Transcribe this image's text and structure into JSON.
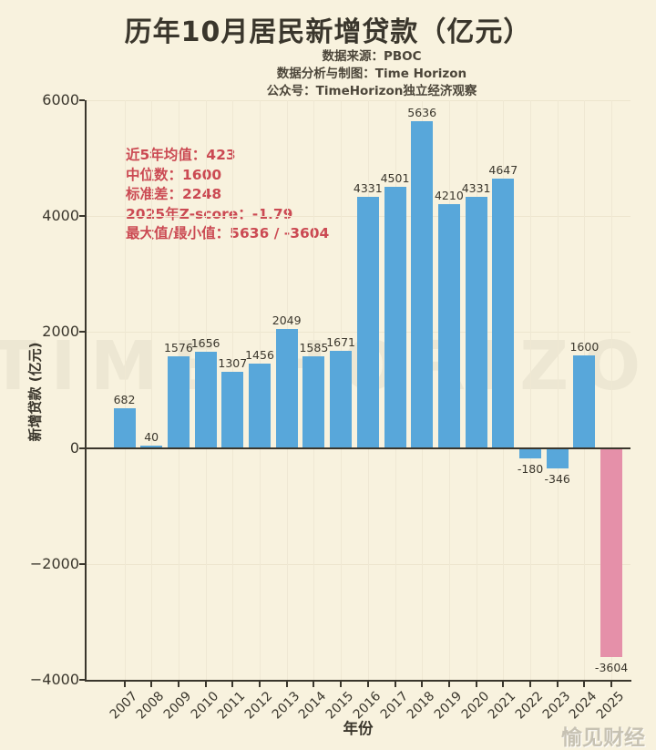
{
  "title": "历年10月居民新增贷款（亿元）",
  "subtitle": {
    "lines": [
      "数据来源：PBOC",
      "数据分析与制图：Time Horizon",
      "公众号：TimeHorizon独立经济观察"
    ]
  },
  "stats_box": {
    "lines": [
      "近5年均值：423",
      "中位数：1600",
      "标准差：2248",
      "2025年Z-score：-1.79",
      "最大值/最小值：5636 / -3604"
    ]
  },
  "watermarks": {
    "plot": "TIME HORIZON",
    "corner": "愉见财经"
  },
  "colors": {
    "background": "#F8F2DE",
    "bar_primary": "#58A7DA",
    "bar_highlight": "#E590A9",
    "axis": "#3A362C",
    "stats_text": "#CB4A53",
    "grid": "#EDE5CE"
  },
  "chart_data": {
    "type": "bar",
    "title": "历年10月居民新增贷款（亿元）",
    "categories": [
      "2007",
      "2008",
      "2009",
      "2010",
      "2011",
      "2012",
      "2013",
      "2014",
      "2015",
      "2016",
      "2017",
      "2018",
      "2019",
      "2020",
      "2021",
      "2022",
      "2023",
      "2024",
      "2025"
    ],
    "values": [
      682,
      40,
      1576,
      1656,
      1307,
      1456,
      2049,
      1585,
      1671,
      4331,
      4501,
      5636,
      4210,
      4331,
      4647,
      -180,
      -346,
      1600,
      -3604
    ],
    "highlight_index": 18,
    "xlabel": "年份",
    "ylabel": "新增贷款 (亿元)",
    "ylim": [
      -4000,
      6000
    ],
    "yticks": [
      -4000,
      -2000,
      0,
      2000,
      4000,
      6000
    ],
    "grid": true,
    "legend": null
  }
}
